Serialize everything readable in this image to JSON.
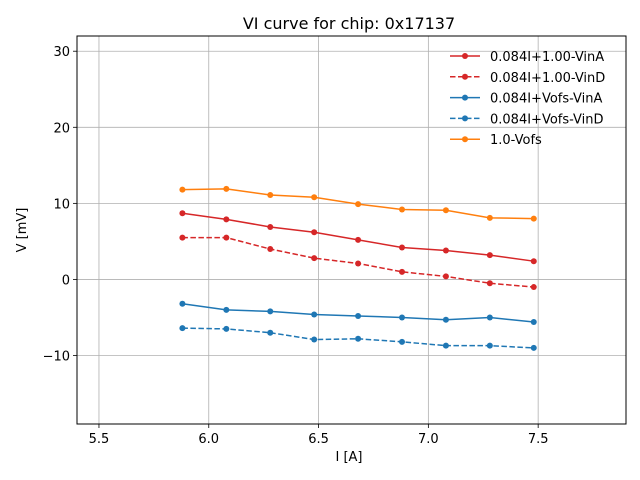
{
  "chart_data": {
    "type": "line",
    "title": "VI curve for chip: 0x17137",
    "xlabel": "I [A]",
    "ylabel": "V [mV]",
    "xlim": [
      5.4,
      7.9
    ],
    "ylim": [
      -19,
      32
    ],
    "xticks": [
      5.5,
      6.0,
      6.5,
      7.0,
      7.5
    ],
    "xtick_labels": [
      "5.5",
      "6.0",
      "6.5",
      "7.0",
      "7.5"
    ],
    "yticks": [
      -10,
      0,
      10,
      20,
      30
    ],
    "ytick_labels": [
      "−10",
      "0",
      "10",
      "20",
      "30"
    ],
    "grid": true,
    "legend_position": "top-right",
    "x": [
      5.88,
      6.08,
      6.28,
      6.48,
      6.68,
      6.88,
      7.08,
      7.28,
      7.48
    ],
    "series": [
      {
        "name": "0.084I+1.00-VinA",
        "color": "#d62728",
        "dashed": false,
        "values": [
          8.7,
          7.9,
          6.9,
          6.2,
          5.2,
          4.2,
          3.8,
          3.2,
          2.4
        ]
      },
      {
        "name": "0.084I+1.00-VinD",
        "color": "#d62728",
        "dashed": true,
        "values": [
          5.5,
          5.5,
          4.0,
          2.8,
          2.1,
          1.0,
          0.4,
          -0.5,
          -1.0
        ]
      },
      {
        "name": "0.084I+Vofs-VinA",
        "color": "#1f77b4",
        "dashed": false,
        "values": [
          -3.2,
          -4.0,
          -4.2,
          -4.6,
          -4.8,
          -5.0,
          -5.3,
          -5.0,
          -5.6
        ]
      },
      {
        "name": "0.084I+Vofs-VinD",
        "color": "#1f77b4",
        "dashed": true,
        "values": [
          -6.4,
          -6.5,
          -7.0,
          -7.9,
          -7.8,
          -8.2,
          -8.7,
          -8.7,
          -9.0
        ]
      },
      {
        "name": "1.0-Vofs",
        "color": "#ff7f0e",
        "dashed": false,
        "values": [
          11.8,
          11.9,
          11.1,
          10.8,
          9.9,
          9.2,
          9.1,
          8.1,
          8.0
        ]
      }
    ]
  }
}
